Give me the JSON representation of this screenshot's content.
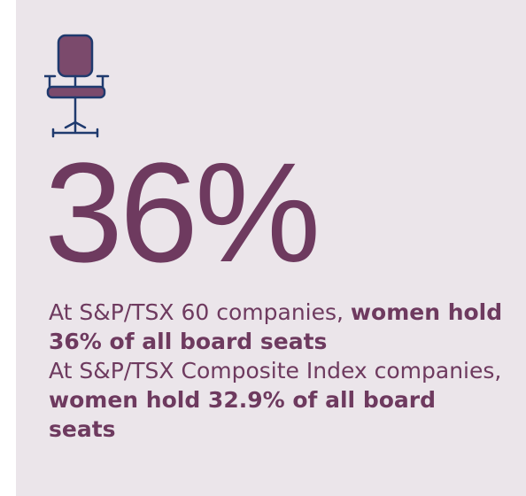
{
  "stat": "36%",
  "paragraphs": [
    {
      "text": "At S&P/TSX 60 companies, ",
      "emphasis": "women hold 36% of all board seats"
    },
    {
      "text": "At S&P/TSX Composite Index companies, ",
      "emphasis": "women hold 32.9% of all board seats"
    }
  ]
}
